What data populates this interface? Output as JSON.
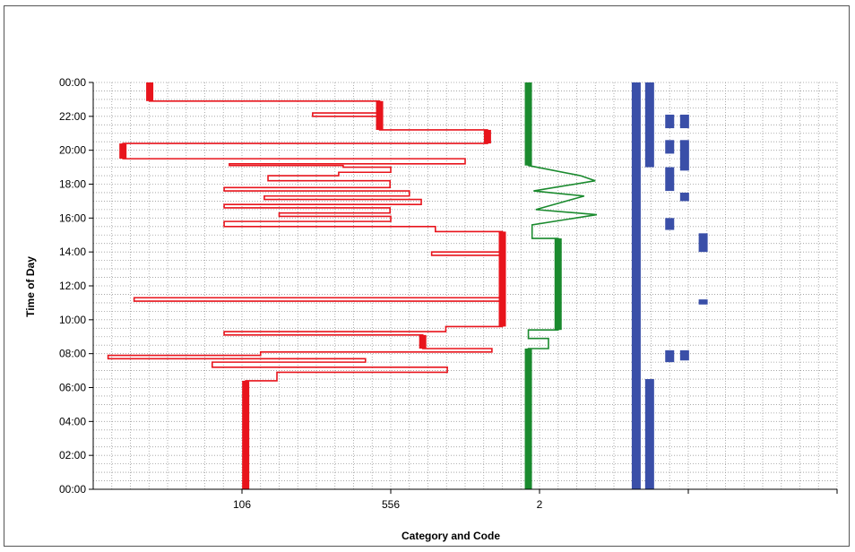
{
  "chart_data": {
    "type": "line",
    "xlabel": "Category and Code",
    "ylabel": "Time of Day",
    "x_tick_labels": [
      "106",
      "556",
      "2"
    ],
    "y_tick_labels": [
      "00:00",
      "02:00",
      "04:00",
      "06:00",
      "08:00",
      "10:00",
      "12:00",
      "14:00",
      "16:00",
      "18:00",
      "20:00",
      "22:00",
      "00:00"
    ],
    "ylim_hours": [
      0,
      24
    ],
    "grid": true,
    "colors": {
      "red": "#e8141c",
      "green": "#1a8a2e",
      "blue": "#3a4fa8",
      "grid": "#9a9a9a"
    },
    "series": [
      {
        "color_key": "red",
        "points": [
          [
            0.205,
            0
          ],
          [
            0.205,
            6.4
          ],
          [
            0.247,
            6.4
          ],
          [
            0.247,
            6.9
          ],
          [
            0.476,
            6.9
          ],
          [
            0.476,
            7.2
          ],
          [
            0.16,
            7.2
          ],
          [
            0.16,
            7.5
          ],
          [
            0.366,
            7.5
          ],
          [
            0.366,
            7.7
          ],
          [
            0.02,
            7.7
          ],
          [
            0.02,
            7.9
          ],
          [
            0.225,
            7.9
          ],
          [
            0.225,
            8.1
          ],
          [
            0.536,
            8.1
          ],
          [
            0.536,
            8.3
          ],
          [
            0.443,
            8.3
          ],
          [
            0.443,
            9.1
          ],
          [
            0.176,
            9.1
          ],
          [
            0.176,
            9.3
          ],
          [
            0.474,
            9.3
          ],
          [
            0.474,
            9.6
          ],
          [
            0.55,
            9.6
          ],
          [
            0.55,
            11.1
          ],
          [
            0.055,
            11.1
          ],
          [
            0.055,
            11.3
          ],
          [
            0.55,
            11.3
          ],
          [
            0.55,
            13.8
          ],
          [
            0.455,
            13.8
          ],
          [
            0.455,
            14.0
          ],
          [
            0.55,
            14.0
          ],
          [
            0.55,
            15.2
          ],
          [
            0.46,
            15.2
          ],
          [
            0.46,
            15.5
          ],
          [
            0.176,
            15.5
          ],
          [
            0.176,
            15.8
          ],
          [
            0.4,
            15.8
          ],
          [
            0.4,
            16.1
          ],
          [
            0.25,
            16.1
          ],
          [
            0.25,
            16.3
          ],
          [
            0.399,
            16.3
          ],
          [
            0.399,
            16.6
          ],
          [
            0.176,
            16.6
          ],
          [
            0.176,
            16.8
          ],
          [
            0.441,
            16.8
          ],
          [
            0.441,
            17.1
          ],
          [
            0.23,
            17.1
          ],
          [
            0.23,
            17.3
          ],
          [
            0.425,
            17.3
          ],
          [
            0.425,
            17.6
          ],
          [
            0.176,
            17.6
          ],
          [
            0.176,
            17.8
          ],
          [
            0.399,
            17.8
          ],
          [
            0.399,
            18.2
          ],
          [
            0.235,
            18.2
          ],
          [
            0.235,
            18.5
          ],
          [
            0.33,
            18.5
          ],
          [
            0.33,
            18.7
          ],
          [
            0.4,
            18.7
          ],
          [
            0.4,
            19.0
          ],
          [
            0.336,
            19.0
          ],
          [
            0.336,
            19.1
          ],
          [
            0.183,
            19.1
          ],
          [
            0.183,
            19.2
          ],
          [
            0.5,
            19.2
          ],
          [
            0.5,
            19.5
          ],
          [
            0.04,
            19.5
          ],
          [
            0.04,
            20.4
          ],
          [
            0.53,
            20.4
          ],
          [
            0.53,
            21.2
          ],
          [
            0.385,
            21.2
          ],
          [
            0.385,
            22.0
          ],
          [
            0.295,
            22.0
          ],
          [
            0.295,
            22.2
          ],
          [
            0.385,
            22.2
          ],
          [
            0.385,
            22.9
          ],
          [
            0.076,
            22.9
          ],
          [
            0.076,
            24
          ]
        ]
      },
      {
        "color_key": "green",
        "points": [
          [
            0.585,
            0
          ],
          [
            0.585,
            8.3
          ],
          [
            0.585,
            8.3
          ],
          [
            0.612,
            8.3
          ],
          [
            0.612,
            8.9
          ],
          [
            0.585,
            8.9
          ],
          [
            0.585,
            9.4
          ],
          [
            0.625,
            9.4
          ],
          [
            0.625,
            14.8
          ],
          [
            0.59,
            14.8
          ],
          [
            0.59,
            15.6
          ],
          [
            0.677,
            16.2
          ],
          [
            0.595,
            16.5
          ],
          [
            0.66,
            17.3
          ],
          [
            0.592,
            17.6
          ],
          [
            0.675,
            18.2
          ],
          [
            0.655,
            18.5
          ],
          [
            0.585,
            19.1
          ],
          [
            0.585,
            24
          ]
        ]
      }
    ],
    "blue_blocks": [
      {
        "column": 0.73,
        "from": 0,
        "to": 24
      },
      {
        "column": 0.748,
        "from": 0,
        "to": 6.5
      },
      {
        "column": 0.748,
        "from": 19,
        "to": 24
      },
      {
        "column": 0.775,
        "from": 7.5,
        "to": 8.2
      },
      {
        "column": 0.775,
        "from": 15.3,
        "to": 16.0
      },
      {
        "column": 0.775,
        "from": 17.6,
        "to": 19.0
      },
      {
        "column": 0.775,
        "from": 19.8,
        "to": 20.6
      },
      {
        "column": 0.775,
        "from": 21.3,
        "to": 22.1
      },
      {
        "column": 0.795,
        "from": 7.6,
        "to": 8.2
      },
      {
        "column": 0.795,
        "from": 17.0,
        "to": 17.5
      },
      {
        "column": 0.795,
        "from": 18.8,
        "to": 20.6
      },
      {
        "column": 0.795,
        "from": 21.3,
        "to": 22.1
      },
      {
        "column": 0.82,
        "from": 10.9,
        "to": 11.2
      },
      {
        "column": 0.82,
        "from": 14.0,
        "to": 15.1
      }
    ]
  }
}
